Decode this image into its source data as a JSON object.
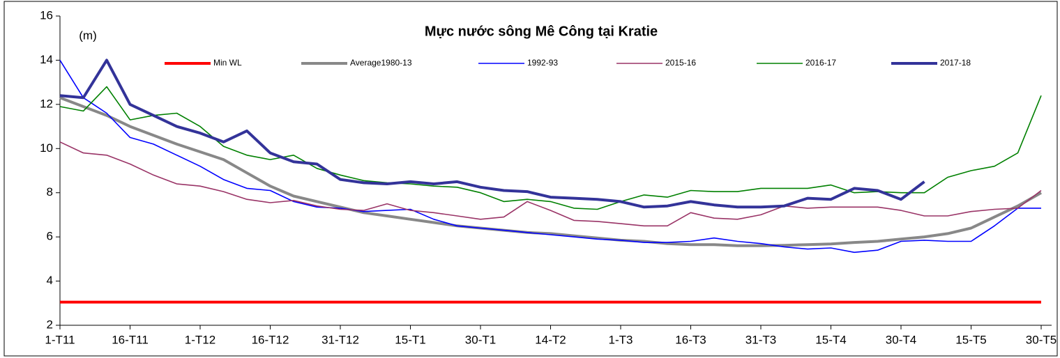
{
  "chart_data": {
    "type": "line",
    "title": "Mực nước sông Mê Công tại Kratie",
    "y_label": "(m)",
    "categories": [
      "1-T11",
      null,
      null,
      "16-T11",
      null,
      null,
      "1-T12",
      null,
      null,
      "16-T12",
      null,
      null,
      "31-T12",
      null,
      null,
      "15-T1",
      null,
      null,
      "30-T1",
      null,
      null,
      "14-T2",
      null,
      null,
      "1-T3",
      null,
      null,
      "16-T3",
      null,
      null,
      "31-T3",
      null,
      null,
      "15-T4",
      null,
      null,
      "30-T4",
      null,
      null,
      "15-T5",
      null,
      null,
      "30-T5"
    ],
    "ylim": [
      2,
      16
    ],
    "yticks": [
      2,
      4,
      6,
      8,
      10,
      12,
      14,
      16
    ],
    "legend": "top",
    "series": [
      {
        "name": "Min WL",
        "color": "#ff0000",
        "width": 4,
        "values": [
          3.05,
          3.05,
          3.05,
          3.05,
          3.05,
          3.05,
          3.05,
          3.05,
          3.05,
          3.05,
          3.05,
          3.05,
          3.05,
          3.05,
          3.05,
          3.05,
          3.05,
          3.05,
          3.05,
          3.05,
          3.05,
          3.05,
          3.05,
          3.05,
          3.05,
          3.05,
          3.05,
          3.05,
          3.05,
          3.05,
          3.05,
          3.05,
          3.05,
          3.05,
          3.05,
          3.05,
          3.05,
          3.05,
          3.05,
          3.05,
          3.05,
          3.05,
          3.05
        ]
      },
      {
        "name": "Average1980-13",
        "color": "#888888",
        "width": 4,
        "values": [
          12.3,
          11.9,
          11.5,
          11.0,
          10.6,
          10.2,
          9.85,
          9.5,
          8.9,
          8.3,
          7.85,
          7.6,
          7.35,
          7.1,
          6.95,
          6.8,
          6.65,
          6.5,
          6.4,
          6.3,
          6.2,
          6.15,
          6.05,
          5.95,
          5.85,
          5.8,
          5.7,
          5.65,
          5.65,
          5.6,
          5.6,
          5.62,
          5.65,
          5.68,
          5.75,
          5.8,
          5.9,
          6.0,
          6.15,
          6.4,
          6.9,
          7.4,
          8.0
        ]
      },
      {
        "name": "1992-93",
        "color": "#0000ff",
        "width": 1.6,
        "values": [
          14.0,
          12.3,
          11.6,
          10.5,
          10.2,
          9.7,
          9.2,
          8.6,
          8.2,
          8.1,
          7.6,
          7.35,
          7.3,
          7.15,
          7.2,
          7.25,
          6.8,
          6.5,
          6.4,
          6.3,
          6.2,
          6.1,
          6.0,
          5.9,
          5.85,
          5.75,
          5.75,
          5.8,
          5.95,
          5.8,
          5.7,
          5.55,
          5.45,
          5.5,
          5.3,
          5.4,
          5.8,
          5.85,
          5.8,
          5.8,
          6.5,
          7.3,
          7.3
        ]
      },
      {
        "name": "2015-16",
        "color": "#993366",
        "width": 1.6,
        "values": [
          10.3,
          9.8,
          9.7,
          9.3,
          8.8,
          8.4,
          8.3,
          8.05,
          7.7,
          7.55,
          7.65,
          7.4,
          7.25,
          7.2,
          7.5,
          7.2,
          7.1,
          6.95,
          6.8,
          6.9,
          7.6,
          7.2,
          6.75,
          6.7,
          6.6,
          6.5,
          6.5,
          7.1,
          6.85,
          6.8,
          7.0,
          7.4,
          7.3,
          7.35,
          7.35,
          7.35,
          7.2,
          6.95,
          6.95,
          7.15,
          7.25,
          7.3,
          8.1
        ]
      },
      {
        "name": "2016-17",
        "color": "#008000",
        "width": 1.6,
        "values": [
          11.9,
          11.7,
          12.8,
          11.3,
          11.5,
          11.6,
          11.0,
          10.1,
          9.7,
          9.5,
          9.7,
          9.1,
          8.8,
          8.55,
          8.45,
          8.4,
          8.3,
          8.25,
          8.0,
          7.6,
          7.7,
          7.6,
          7.3,
          7.25,
          7.6,
          7.9,
          7.8,
          8.1,
          8.05,
          8.05,
          8.2,
          8.2,
          8.2,
          8.35,
          8.0,
          8.05,
          8.0,
          8.0,
          8.7,
          9.0,
          9.2,
          9.8,
          12.4
        ]
      },
      {
        "name": "2017-18",
        "color": "#333399",
        "width": 4,
        "values": [
          12.4,
          12.3,
          14.0,
          12.0,
          11.5,
          11.0,
          10.7,
          10.3,
          10.8,
          9.8,
          9.4,
          9.3,
          8.6,
          8.45,
          8.4,
          8.5,
          8.4,
          8.5,
          8.25,
          8.1,
          8.05,
          7.8,
          7.75,
          7.7,
          7.6,
          7.35,
          7.4,
          7.6,
          7.45,
          7.35,
          7.35,
          7.4,
          7.75,
          7.7,
          8.2,
          8.1,
          7.7,
          8.5,
          null,
          null,
          null,
          null,
          null
        ]
      }
    ]
  }
}
